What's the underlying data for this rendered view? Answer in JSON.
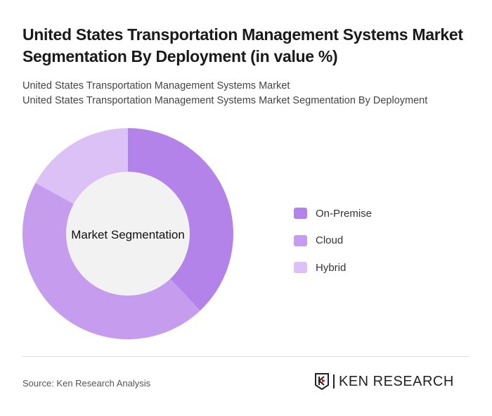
{
  "title": "United States Transportation Management Systems Market Segmentation By Deployment (in value %)",
  "subtitle1": "United States Transportation Management Systems Market",
  "subtitle2": "United States Transportation Management Systems Market Segmentation By Deployment",
  "source": "Source: Ken Research Analysis",
  "logo_text": "KEN RESEARCH",
  "chart_data": {
    "type": "pie",
    "variant": "donut",
    "center_label": "Market Segmentation",
    "categories": [
      "On-Premise",
      "Cloud",
      "Hybrid"
    ],
    "values": [
      38,
      45,
      17
    ],
    "colors": [
      "#b483ea",
      "#c59cee",
      "#dcc1f6"
    ],
    "legend_position": "right"
  }
}
